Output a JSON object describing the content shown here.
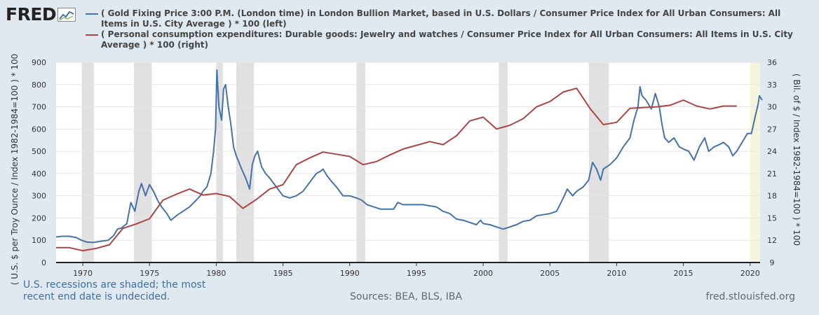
{
  "logo": {
    "text": "FRED",
    "icon": "chart-line-icon"
  },
  "footer": {
    "recession_note": "U.S. recessions are shaded; the most recent end date is undecided.",
    "sources": "Sources: BEA, BLS, IBA",
    "site": "fred.stlouisfed.org"
  },
  "chart_data": {
    "type": "line",
    "series": [
      {
        "name": "( Gold Fixing Price 3:00 P.M. (London time) in London Bullion Market, based in U.S. Dollars / Consumer Price Index for All Urban Consumers: All Items in U.S. City Average ) * 100 (left)",
        "color": "#4572a7",
        "axis": "left",
        "points": [
          [
            1968.0,
            115
          ],
          [
            1968.5,
            118
          ],
          [
            1969.0,
            118
          ],
          [
            1969.5,
            112
          ],
          [
            1969.9,
            100
          ],
          [
            1970.3,
            92
          ],
          [
            1970.8,
            90
          ],
          [
            1971.3,
            95
          ],
          [
            1971.9,
            100
          ],
          [
            1972.3,
            120
          ],
          [
            1972.6,
            150
          ],
          [
            1972.9,
            155
          ],
          [
            1973.3,
            175
          ],
          [
            1973.6,
            270
          ],
          [
            1973.9,
            230
          ],
          [
            1974.2,
            320
          ],
          [
            1974.4,
            355
          ],
          [
            1974.7,
            300
          ],
          [
            1975.0,
            350
          ],
          [
            1975.3,
            320
          ],
          [
            1975.6,
            280
          ],
          [
            1975.9,
            250
          ],
          [
            1976.3,
            220
          ],
          [
            1976.6,
            190
          ],
          [
            1977.0,
            210
          ],
          [
            1977.5,
            230
          ],
          [
            1978.0,
            250
          ],
          [
            1978.5,
            280
          ],
          [
            1978.8,
            300
          ],
          [
            1979.0,
            320
          ],
          [
            1979.3,
            340
          ],
          [
            1979.6,
            400
          ],
          [
            1979.8,
            500
          ],
          [
            1979.95,
            600
          ],
          [
            1980.05,
            865
          ],
          [
            1980.2,
            700
          ],
          [
            1980.4,
            640
          ],
          [
            1980.55,
            780
          ],
          [
            1980.7,
            800
          ],
          [
            1980.9,
            700
          ],
          [
            1981.1,
            620
          ],
          [
            1981.3,
            520
          ],
          [
            1981.5,
            480
          ],
          [
            1981.7,
            450
          ],
          [
            1981.9,
            420
          ],
          [
            1982.2,
            380
          ],
          [
            1982.5,
            330
          ],
          [
            1982.7,
            440
          ],
          [
            1982.9,
            480
          ],
          [
            1983.1,
            500
          ],
          [
            1983.4,
            430
          ],
          [
            1983.7,
            400
          ],
          [
            1984.0,
            380
          ],
          [
            1984.5,
            340
          ],
          [
            1985.0,
            300
          ],
          [
            1985.5,
            290
          ],
          [
            1986.0,
            300
          ],
          [
            1986.5,
            320
          ],
          [
            1987.0,
            360
          ],
          [
            1987.5,
            400
          ],
          [
            1987.8,
            410
          ],
          [
            1988.0,
            420
          ],
          [
            1988.3,
            390
          ],
          [
            1988.7,
            360
          ],
          [
            1989.0,
            340
          ],
          [
            1989.5,
            300
          ],
          [
            1990.0,
            300
          ],
          [
            1990.5,
            290
          ],
          [
            1990.9,
            280
          ],
          [
            1991.3,
            260
          ],
          [
            1991.8,
            250
          ],
          [
            1992.3,
            240
          ],
          [
            1992.8,
            240
          ],
          [
            1993.3,
            240
          ],
          [
            1993.6,
            270
          ],
          [
            1994.0,
            260
          ],
          [
            1994.5,
            260
          ],
          [
            1995.0,
            260
          ],
          [
            1995.5,
            260
          ],
          [
            1996.0,
            255
          ],
          [
            1996.5,
            250
          ],
          [
            1997.0,
            230
          ],
          [
            1997.5,
            220
          ],
          [
            1998.0,
            195
          ],
          [
            1998.5,
            190
          ],
          [
            1999.0,
            180
          ],
          [
            1999.5,
            170
          ],
          [
            1999.8,
            190
          ],
          [
            2000.0,
            175
          ],
          [
            2000.5,
            170
          ],
          [
            2001.0,
            160
          ],
          [
            2001.5,
            150
          ],
          [
            2002.0,
            160
          ],
          [
            2002.5,
            170
          ],
          [
            2003.0,
            185
          ],
          [
            2003.5,
            190
          ],
          [
            2004.0,
            210
          ],
          [
            2004.5,
            215
          ],
          [
            2005.0,
            220
          ],
          [
            2005.5,
            230
          ],
          [
            2006.0,
            290
          ],
          [
            2006.3,
            330
          ],
          [
            2006.7,
            300
          ],
          [
            2007.0,
            320
          ],
          [
            2007.5,
            340
          ],
          [
            2007.9,
            370
          ],
          [
            2008.2,
            450
          ],
          [
            2008.5,
            420
          ],
          [
            2008.8,
            370
          ],
          [
            2009.0,
            420
          ],
          [
            2009.5,
            440
          ],
          [
            2010.0,
            470
          ],
          [
            2010.5,
            520
          ],
          [
            2011.0,
            560
          ],
          [
            2011.3,
            640
          ],
          [
            2011.6,
            700
          ],
          [
            2011.75,
            790
          ],
          [
            2011.9,
            750
          ],
          [
            2012.2,
            730
          ],
          [
            2012.6,
            690
          ],
          [
            2012.9,
            760
          ],
          [
            2013.2,
            700
          ],
          [
            2013.4,
            620
          ],
          [
            2013.6,
            560
          ],
          [
            2013.9,
            540
          ],
          [
            2014.3,
            560
          ],
          [
            2014.7,
            520
          ],
          [
            2015.0,
            510
          ],
          [
            2015.4,
            500
          ],
          [
            2015.8,
            460
          ],
          [
            2016.2,
            520
          ],
          [
            2016.6,
            560
          ],
          [
            2016.9,
            500
          ],
          [
            2017.3,
            520
          ],
          [
            2017.7,
            530
          ],
          [
            2018.0,
            540
          ],
          [
            2018.4,
            520
          ],
          [
            2018.7,
            480
          ],
          [
            2019.0,
            500
          ],
          [
            2019.4,
            540
          ],
          [
            2019.8,
            580
          ],
          [
            2020.1,
            580
          ],
          [
            2020.4,
            660
          ],
          [
            2020.6,
            710
          ],
          [
            2020.7,
            750
          ],
          [
            2020.9,
            730
          ]
        ]
      },
      {
        "name": "( Personal consumption expenditures: Durable goods: Jewelry and watches / Consumer Price Index for All Urban Consumers: All Items in U.S. City Average ) * 100 (right)",
        "color": "#aa4643",
        "axis": "right",
        "points": [
          [
            1968,
            11.0
          ],
          [
            1969,
            11.0
          ],
          [
            1970,
            10.6
          ],
          [
            1971,
            10.9
          ],
          [
            1972,
            11.4
          ],
          [
            1973,
            13.6
          ],
          [
            1974,
            14.2
          ],
          [
            1975,
            14.9
          ],
          [
            1976,
            17.4
          ],
          [
            1977,
            18.2
          ],
          [
            1978,
            18.9
          ],
          [
            1979,
            18.1
          ],
          [
            1980,
            18.3
          ],
          [
            1981,
            17.9
          ],
          [
            1982,
            16.3
          ],
          [
            1983,
            17.5
          ],
          [
            1984,
            18.9
          ],
          [
            1985,
            19.5
          ],
          [
            1986,
            22.2
          ],
          [
            1987,
            23.1
          ],
          [
            1988,
            23.9
          ],
          [
            1989,
            23.6
          ],
          [
            1990,
            23.3
          ],
          [
            1991,
            22.2
          ],
          [
            1992,
            22.6
          ],
          [
            1993,
            23.5
          ],
          [
            1994,
            24.3
          ],
          [
            1995,
            24.8
          ],
          [
            1996,
            25.3
          ],
          [
            1997,
            24.9
          ],
          [
            1998,
            26.1
          ],
          [
            1999,
            28.1
          ],
          [
            2000,
            28.6
          ],
          [
            2001,
            27.0
          ],
          [
            2002,
            27.5
          ],
          [
            2003,
            28.4
          ],
          [
            2004,
            30.0
          ],
          [
            2005,
            30.7
          ],
          [
            2006,
            32.0
          ],
          [
            2007,
            32.5
          ],
          [
            2008,
            29.8
          ],
          [
            2009,
            27.6
          ],
          [
            2010,
            27.9
          ],
          [
            2011,
            29.8
          ],
          [
            2012,
            29.9
          ],
          [
            2013,
            30.0
          ],
          [
            2014,
            30.2
          ],
          [
            2015,
            30.9
          ],
          [
            2016,
            30.1
          ],
          [
            2017,
            29.7
          ],
          [
            2018,
            30.1
          ],
          [
            2019,
            30.1
          ]
        ]
      }
    ],
    "recessions": [
      [
        1969.92,
        1970.83
      ],
      [
        1973.83,
        1975.17
      ],
      [
        1980.0,
        1980.5
      ],
      [
        1981.5,
        1982.83
      ],
      [
        1990.5,
        1991.17
      ],
      [
        2001.17,
        2001.83
      ],
      [
        2007.92,
        2009.42
      ]
    ],
    "recession_recent": [
      2020.0,
      2020.75
    ],
    "xlim": [
      1968,
      2020.75
    ],
    "x_ticks": [
      "1970",
      "1975",
      "1980",
      "1985",
      "1990",
      "1995",
      "2000",
      "2005",
      "2010",
      "2015",
      "2020"
    ],
    "ylim_left": [
      0,
      900
    ],
    "y_ticks_left": [
      "0",
      "100",
      "200",
      "300",
      "400",
      "500",
      "600",
      "700",
      "800",
      "900"
    ],
    "ylim_right": [
      9,
      36
    ],
    "y_ticks_right": [
      "9",
      "12",
      "15",
      "18",
      "21",
      "24",
      "27",
      "30",
      "33",
      "36"
    ],
    "ylabel_left": "( U.S. $ per Troy Ounce / Index 1982-1984=100 ) * 100",
    "ylabel_right": "( Bil. of $ / Index 1982-1984=100 ) * 100",
    "grid": true,
    "legend_position": "top",
    "colors": {
      "background": "#e1e9f0",
      "plot": "#ffffff",
      "grid": "#e6e6e6",
      "recession": "#e1e1e1",
      "recession_recent": "#f5f5dc",
      "axis_text": "#333333"
    }
  }
}
